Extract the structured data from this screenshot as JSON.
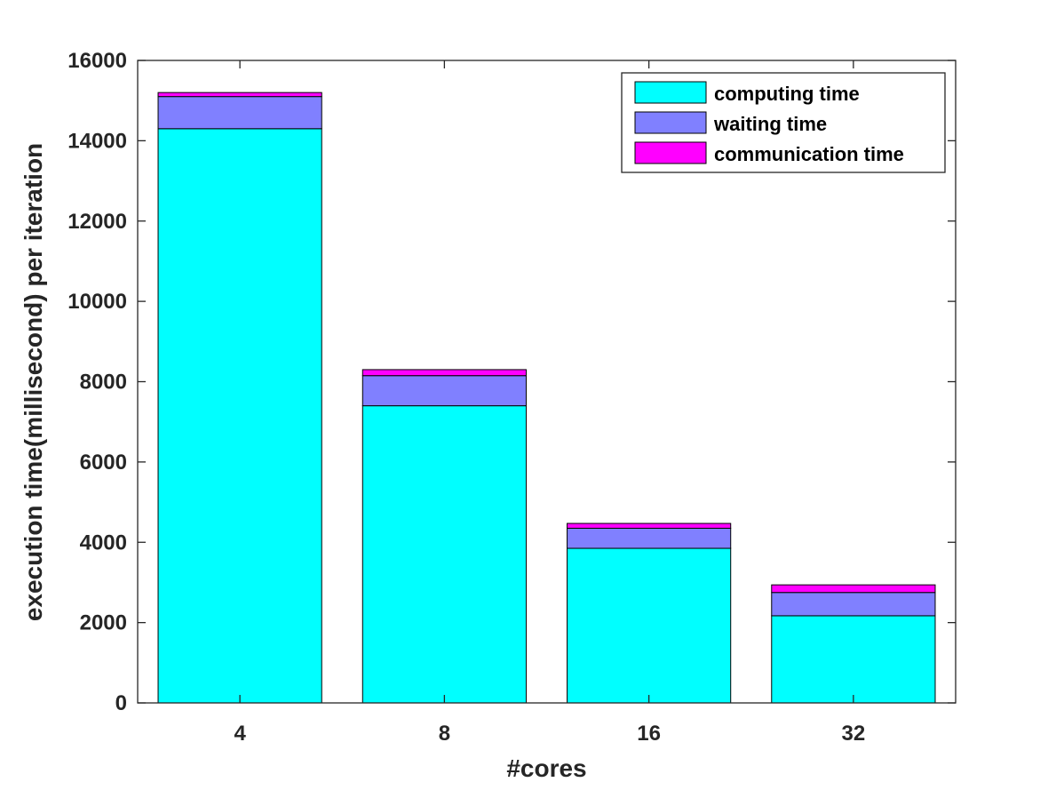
{
  "chart_data": {
    "type": "bar",
    "stacked": true,
    "categories": [
      "4",
      "8",
      "16",
      "32"
    ],
    "series": [
      {
        "name": "computing time",
        "color": "#00ffff",
        "values": [
          14300,
          7400,
          3850,
          2170
        ]
      },
      {
        "name": "waiting time",
        "color": "#8080ff",
        "values": [
          800,
          750,
          500,
          580
        ]
      },
      {
        "name": "communication time",
        "color": "#ff00ff",
        "values": [
          100,
          150,
          120,
          190
        ]
      }
    ],
    "title": "",
    "xlabel": "#cores",
    "ylabel": "execution time(millisecond) per iteration",
    "ylim": [
      0,
      16000
    ],
    "yticks": [
      "0",
      "2000",
      "4000",
      "6000",
      "8000",
      "10000",
      "12000",
      "14000",
      "16000"
    ],
    "grid": false,
    "legend_position": "top-right"
  }
}
